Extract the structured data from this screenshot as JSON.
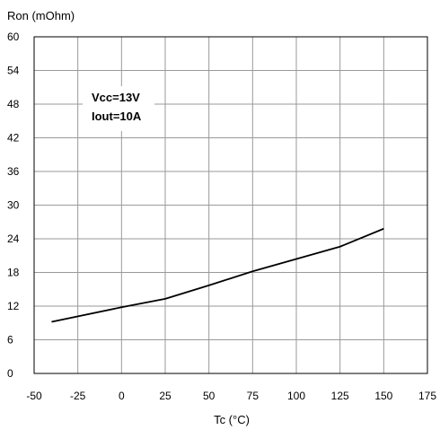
{
  "chart_data": {
    "type": "line",
    "ylabel": "Ron (mOhm)",
    "xlabel": "Tc (°C)",
    "xlim": [
      -50,
      175
    ],
    "ylim": [
      0,
      60
    ],
    "xticks": [
      -50,
      -25,
      0,
      25,
      50,
      75,
      100,
      125,
      150,
      175
    ],
    "yticks": [
      0,
      6,
      12,
      18,
      24,
      30,
      36,
      42,
      48,
      54,
      60
    ],
    "grid": true,
    "annotations": [
      "Vcc=13V",
      "Iout=10A"
    ],
    "series": [
      {
        "x": [
          -40,
          0,
          25,
          50,
          75,
          100,
          125,
          150
        ],
        "values": [
          9.2,
          11.8,
          13.3,
          15.7,
          18.2,
          20.4,
          22.6,
          25.8
        ]
      }
    ]
  }
}
